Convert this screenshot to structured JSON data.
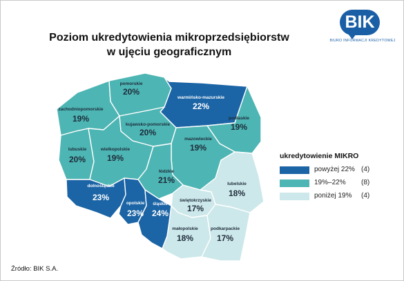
{
  "title": {
    "line1": "Poziom ukredytowienia mikroprzedsiębiorstw",
    "line2": "w ujęciu geograficznym"
  },
  "logo": {
    "text": "BIK",
    "subtitle": "BIURO INFORMACJI KREDYTOWEJ"
  },
  "colors": {
    "high": "#1b64a5",
    "mid": "#4db5b3",
    "low": "#cde8ea"
  },
  "regions": [
    {
      "name": "pomorskie",
      "value": "20%",
      "category": "mid"
    },
    {
      "name": "warmińsko-mazurskie",
      "value": "22%",
      "category": "high"
    },
    {
      "name": "zachodniopomorskie",
      "value": "19%",
      "category": "mid"
    },
    {
      "name": "podlaskie",
      "value": "19%",
      "category": "mid"
    },
    {
      "name": "kujawsko-pomorskie",
      "value": "20%",
      "category": "mid"
    },
    {
      "name": "lubuskie",
      "value": "20%",
      "category": "mid"
    },
    {
      "name": "wielkopolskie",
      "value": "19%",
      "category": "mid"
    },
    {
      "name": "mazowieckie",
      "value": "19%",
      "category": "mid"
    },
    {
      "name": "łódzkie",
      "value": "21%",
      "category": "mid"
    },
    {
      "name": "lubelskie",
      "value": "18%",
      "category": "low"
    },
    {
      "name": "dolnośląskie",
      "value": "23%",
      "category": "high"
    },
    {
      "name": "opolskie",
      "value": "23%",
      "category": "high"
    },
    {
      "name": "śląskie",
      "value": "24%",
      "category": "high"
    },
    {
      "name": "świętokrzyskie",
      "value": "17%",
      "category": "low"
    },
    {
      "name": "małopolskie",
      "value": "18%",
      "category": "low"
    },
    {
      "name": "podkarpackie",
      "value": "17%",
      "category": "low"
    }
  ],
  "legend": {
    "title": "ukredytowienie MIKRO",
    "items": [
      {
        "label": "powyżej 22%",
        "count": "(4)",
        "category": "high"
      },
      {
        "label": "19%–22%",
        "count": "(8)",
        "category": "mid"
      },
      {
        "label": "poniżej 19%",
        "count": "(4)",
        "category": "low"
      }
    ]
  },
  "source": "Źródło: BIK S.A."
}
